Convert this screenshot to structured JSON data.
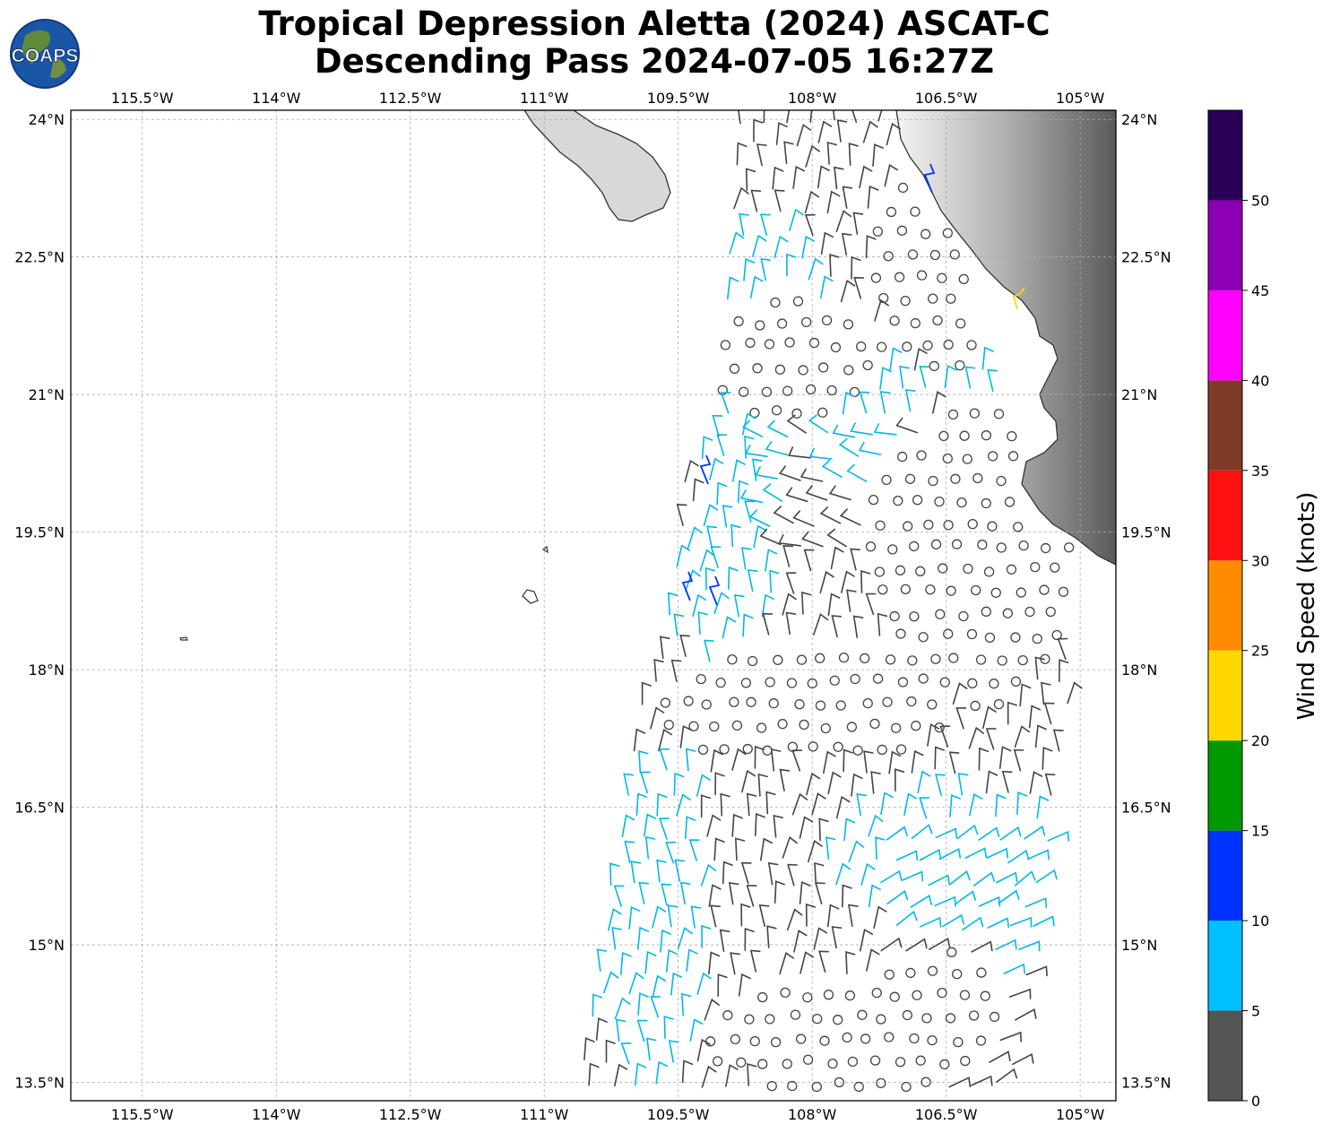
{
  "title": {
    "line1": "Tropical Depression Aletta (2024) ASCAT-C",
    "line2": "Descending Pass 2024-07-05 16:27Z"
  },
  "logo": {
    "text": "COAPS",
    "icon": "globe-logo-icon"
  },
  "map": {
    "lon_range": [
      -116.3,
      -104.6
    ],
    "lat_range": [
      13.3,
      24.1
    ],
    "lon_ticks": [
      {
        "value": -115.5,
        "label": "115.5°W"
      },
      {
        "value": -114,
        "label": "114°W"
      },
      {
        "value": -112.5,
        "label": "112.5°W"
      },
      {
        "value": -111,
        "label": "111°W"
      },
      {
        "value": -109.5,
        "label": "109.5°W"
      },
      {
        "value": -108,
        "label": "108°W"
      },
      {
        "value": -106.5,
        "label": "106.5°W"
      },
      {
        "value": -105,
        "label": "105°W"
      }
    ],
    "lat_ticks": [
      {
        "value": 24,
        "label": "24°N"
      },
      {
        "value": 22.5,
        "label": "22.5°N"
      },
      {
        "value": 21,
        "label": "21°N"
      },
      {
        "value": 19.5,
        "label": "19.5°N"
      },
      {
        "value": 18,
        "label": "18°N"
      },
      {
        "value": 16.5,
        "label": "16.5°N"
      },
      {
        "value": 15,
        "label": "15°N"
      },
      {
        "value": 13.5,
        "label": "13.5°N"
      }
    ],
    "grid": true,
    "coastline_color": "#333333",
    "terrain_colors": [
      "#f2f2f2",
      "#606060"
    ]
  },
  "colorbar": {
    "label": "Wind Speed (knots)",
    "bins": [
      {
        "min": 0,
        "max": 5,
        "color": "#555555"
      },
      {
        "min": 5,
        "max": 10,
        "color": "#00bfff"
      },
      {
        "min": 10,
        "max": 15,
        "color": "#0033ff"
      },
      {
        "min": 15,
        "max": 20,
        "color": "#009900"
      },
      {
        "min": 20,
        "max": 25,
        "color": "#ffd700"
      },
      {
        "min": 25,
        "max": 30,
        "color": "#ff8c00"
      },
      {
        "min": 30,
        "max": 35,
        "color": "#ff1111"
      },
      {
        "min": 35,
        "max": 40,
        "color": "#7f3b28"
      },
      {
        "min": 40,
        "max": 45,
        "color": "#ff00ff"
      },
      {
        "min": 45,
        "max": 50,
        "color": "#8b00b3"
      },
      {
        "min": 50,
        "max": 55,
        "color": "#2b0057"
      }
    ],
    "tick_labels": [
      "0",
      "5",
      "10",
      "15",
      "20",
      "25",
      "30",
      "35",
      "40",
      "45",
      "50"
    ]
  },
  "swath": {
    "description_type": "ASCAT wind barbs",
    "calm_symbol": "circle"
  }
}
